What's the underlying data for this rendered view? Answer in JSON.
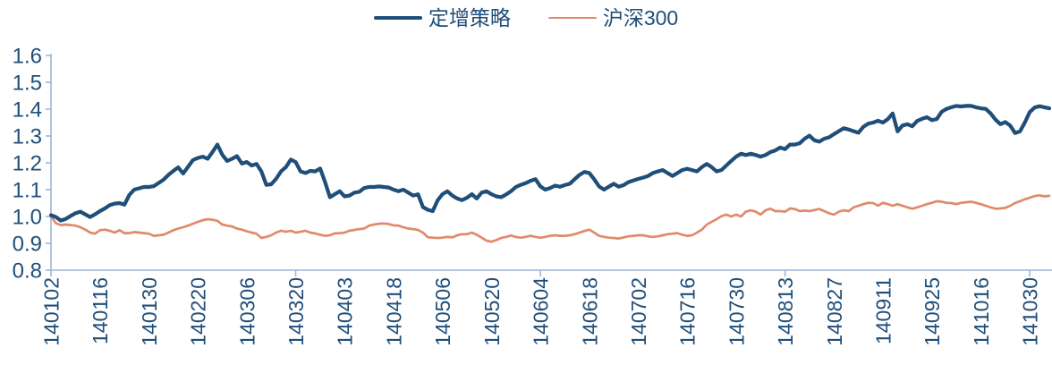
{
  "chart_data": {
    "type": "line",
    "title": "",
    "xlabel": "",
    "ylabel": "",
    "grid": false,
    "legend_position": "top-center",
    "ylim": [
      0.8,
      1.6
    ],
    "y_tick_labels": [
      "0.8",
      "0.9",
      "1.0",
      "1.1",
      "1.2",
      "1.3",
      "1.4",
      "1.5",
      "1.6"
    ],
    "x_tick_labels": [
      "140102",
      "140116",
      "140130",
      "140220",
      "140306",
      "140320",
      "140403",
      "140418",
      "140506",
      "140520",
      "140604",
      "140618",
      "140702",
      "140716",
      "140730",
      "140813",
      "140827",
      "140911",
      "140925",
      "141016",
      "141030"
    ],
    "x_label_every_n_points": 10,
    "x_major_tick_every_n_points": 50,
    "n_points": 205,
    "colors": {
      "axis": "#9FB4D6",
      "tick_label": "#1F4E79",
      "legend_text": "#1F4E79"
    },
    "series": [
      {
        "name": "定增策略",
        "color": "#1F4E79",
        "stroke_width": 4.2,
        "values": [
          1.005,
          0.998,
          0.985,
          0.991,
          1.002,
          1.012,
          1.018,
          1.008,
          0.998,
          1.008,
          1.02,
          1.03,
          1.042,
          1.048,
          1.05,
          1.044,
          1.08,
          1.1,
          1.105,
          1.11,
          1.11,
          1.113,
          1.125,
          1.137,
          1.155,
          1.17,
          1.183,
          1.16,
          1.185,
          1.21,
          1.218,
          1.223,
          1.215,
          1.24,
          1.268,
          1.23,
          1.207,
          1.215,
          1.225,
          1.197,
          1.203,
          1.19,
          1.196,
          1.168,
          1.118,
          1.12,
          1.14,
          1.168,
          1.184,
          1.212,
          1.203,
          1.168,
          1.162,
          1.17,
          1.168,
          1.179,
          1.128,
          1.072,
          1.083,
          1.094,
          1.075,
          1.078,
          1.089,
          1.092,
          1.106,
          1.11,
          1.11,
          1.112,
          1.11,
          1.108,
          1.1,
          1.094,
          1.1,
          1.089,
          1.078,
          1.083,
          1.035,
          1.025,
          1.02,
          1.06,
          1.083,
          1.094,
          1.078,
          1.067,
          1.061,
          1.07,
          1.083,
          1.067,
          1.089,
          1.094,
          1.083,
          1.075,
          1.072,
          1.082,
          1.094,
          1.11,
          1.118,
          1.124,
          1.133,
          1.139,
          1.112,
          1.1,
          1.106,
          1.115,
          1.111,
          1.117,
          1.122,
          1.139,
          1.155,
          1.166,
          1.162,
          1.139,
          1.112,
          1.1,
          1.111,
          1.122,
          1.111,
          1.117,
          1.128,
          1.134,
          1.14,
          1.145,
          1.151,
          1.162,
          1.168,
          1.173,
          1.162,
          1.151,
          1.162,
          1.173,
          1.178,
          1.173,
          1.168,
          1.184,
          1.196,
          1.184,
          1.168,
          1.173,
          1.19,
          1.207,
          1.223,
          1.234,
          1.229,
          1.234,
          1.229,
          1.223,
          1.229,
          1.24,
          1.246,
          1.257,
          1.251,
          1.268,
          1.268,
          1.273,
          1.29,
          1.301,
          1.284,
          1.279,
          1.29,
          1.295,
          1.307,
          1.318,
          1.329,
          1.324,
          1.318,
          1.312,
          1.334,
          1.346,
          1.35,
          1.357,
          1.35,
          1.363,
          1.384,
          1.317,
          1.339,
          1.344,
          1.336,
          1.356,
          1.364,
          1.37,
          1.359,
          1.363,
          1.39,
          1.401,
          1.407,
          1.412,
          1.41,
          1.412,
          1.412,
          1.407,
          1.403,
          1.401,
          1.384,
          1.361,
          1.344,
          1.352,
          1.339,
          1.311,
          1.317,
          1.35,
          1.389,
          1.406,
          1.411,
          1.407,
          1.403
        ]
      },
      {
        "name": "沪深300",
        "color": "#E08A6C",
        "stroke_width": 2.7,
        "values": [
          1.0,
          0.975,
          0.968,
          0.97,
          0.968,
          0.966,
          0.96,
          0.951,
          0.94,
          0.936,
          0.949,
          0.951,
          0.947,
          0.94,
          0.949,
          0.938,
          0.938,
          0.942,
          0.94,
          0.938,
          0.936,
          0.928,
          0.93,
          0.932,
          0.94,
          0.949,
          0.955,
          0.96,
          0.966,
          0.973,
          0.98,
          0.986,
          0.99,
          0.988,
          0.984,
          0.97,
          0.966,
          0.963,
          0.955,
          0.951,
          0.945,
          0.94,
          0.936,
          0.92,
          0.924,
          0.93,
          0.94,
          0.947,
          0.943,
          0.947,
          0.94,
          0.943,
          0.947,
          0.94,
          0.937,
          0.932,
          0.928,
          0.93,
          0.937,
          0.938,
          0.94,
          0.947,
          0.95,
          0.953,
          0.955,
          0.966,
          0.97,
          0.973,
          0.974,
          0.972,
          0.967,
          0.966,
          0.96,
          0.955,
          0.953,
          0.95,
          0.94,
          0.923,
          0.921,
          0.92,
          0.921,
          0.924,
          0.922,
          0.93,
          0.934,
          0.934,
          0.94,
          0.932,
          0.921,
          0.91,
          0.906,
          0.912,
          0.92,
          0.924,
          0.929,
          0.924,
          0.921,
          0.924,
          0.928,
          0.924,
          0.921,
          0.924,
          0.928,
          0.93,
          0.928,
          0.928,
          0.93,
          0.934,
          0.94,
          0.946,
          0.951,
          0.94,
          0.928,
          0.924,
          0.921,
          0.92,
          0.918,
          0.922,
          0.926,
          0.928,
          0.93,
          0.93,
          0.926,
          0.924,
          0.926,
          0.93,
          0.934,
          0.936,
          0.938,
          0.932,
          0.928,
          0.93,
          0.94,
          0.951,
          0.97,
          0.98,
          0.99,
          1.001,
          1.007,
          1.0,
          1.007,
          1.0,
          1.018,
          1.023,
          1.018,
          1.007,
          1.023,
          1.029,
          1.02,
          1.02,
          1.018,
          1.03,
          1.028,
          1.02,
          1.022,
          1.02,
          1.024,
          1.028,
          1.02,
          1.012,
          1.007,
          1.018,
          1.023,
          1.02,
          1.034,
          1.04,
          1.046,
          1.051,
          1.05,
          1.04,
          1.051,
          1.046,
          1.04,
          1.046,
          1.04,
          1.034,
          1.029,
          1.034,
          1.04,
          1.046,
          1.051,
          1.057,
          1.055,
          1.051,
          1.05,
          1.046,
          1.051,
          1.053,
          1.055,
          1.051,
          1.046,
          1.04,
          1.034,
          1.029,
          1.03,
          1.032,
          1.04,
          1.05,
          1.057,
          1.064,
          1.07,
          1.076,
          1.079,
          1.075,
          1.077
        ]
      }
    ]
  }
}
